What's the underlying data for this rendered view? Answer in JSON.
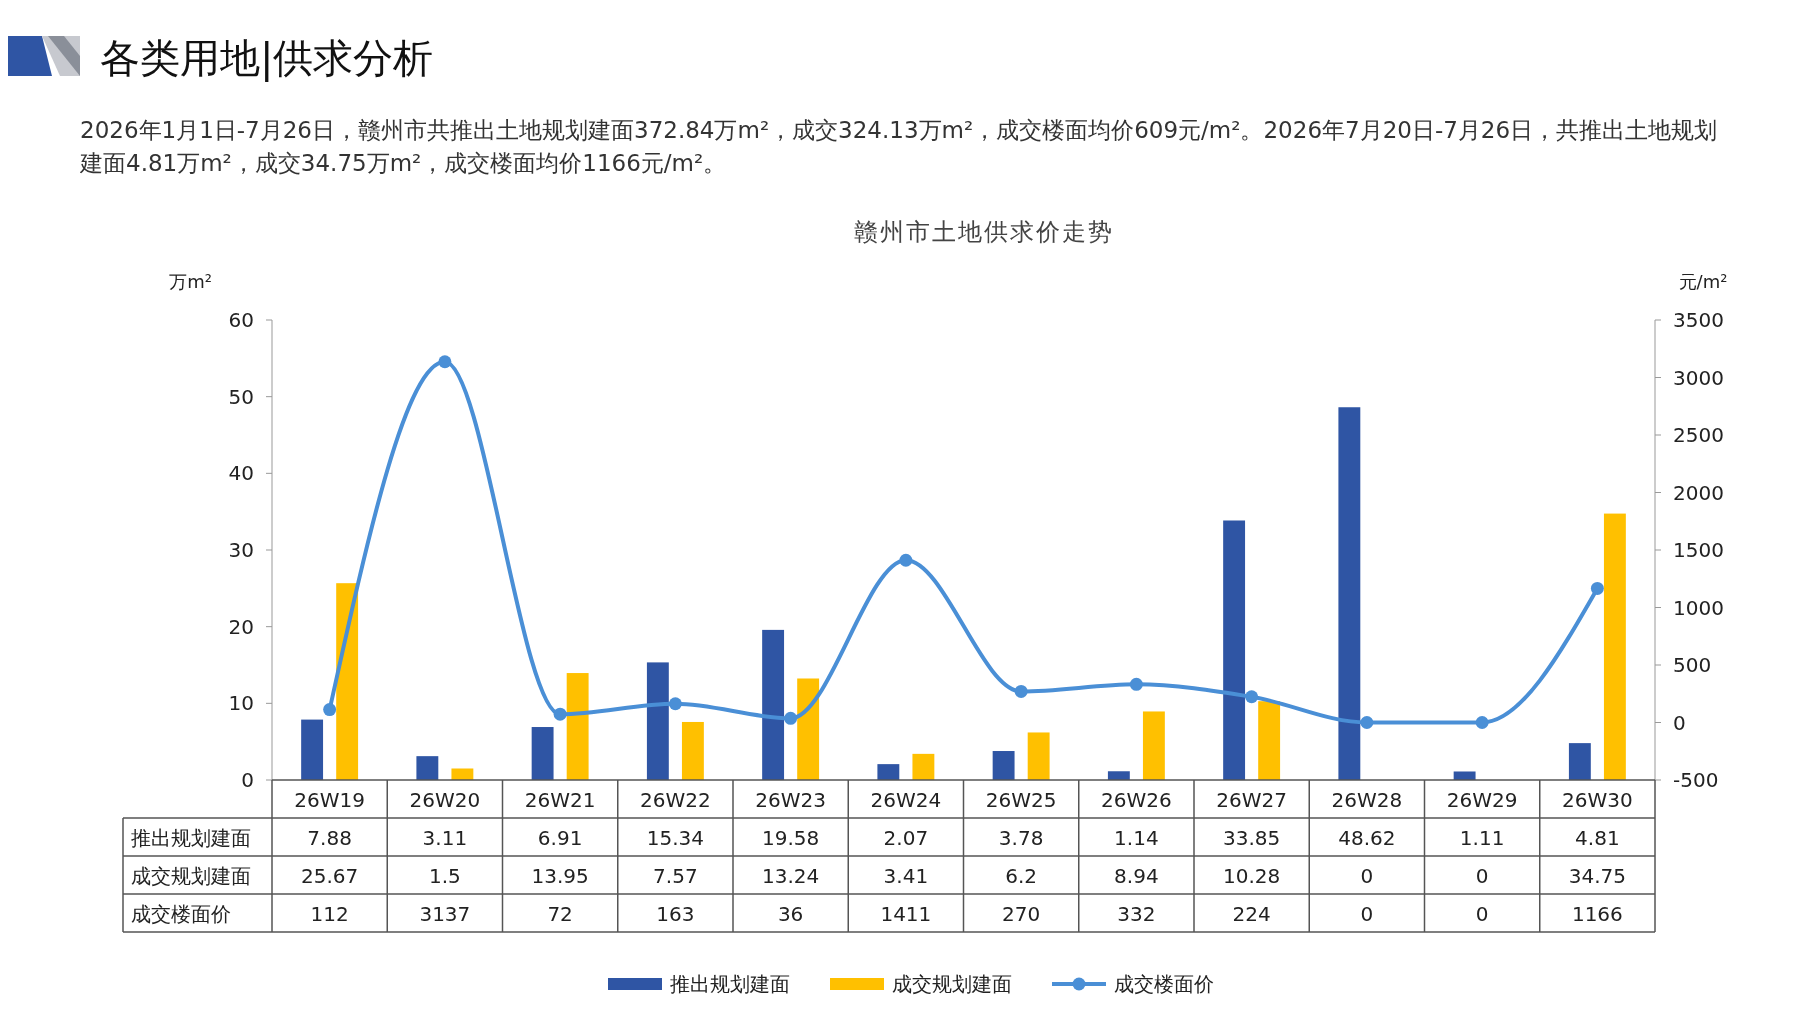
{
  "chart_data": {
    "type": "bar",
    "title": "赣州市土地供求价走势",
    "subtitle": "2026年1月1日-7月26日，赣州市共推出土地规划建面372.84万m²，成交324.13万m²，成交楼面均价609元/m²。2026年7月20日-7月26日，共推出土地规划建面4.81万m²，成交34.75万m²，成交楼面均价1166元/m²。",
    "annotations": [
      "各类用地|供求分析"
    ],
    "ylabel": "万m²",
    "y2label": "元/m²",
    "categories": [
      "26W19",
      "26W20",
      "26W21",
      "26W22",
      "26W23",
      "26W24",
      "26W25",
      "26W26",
      "26W27",
      "26W28",
      "26W29",
      "26W30"
    ],
    "series": [
      {
        "name": "推出规划建面",
        "color": "#2f55a4",
        "values": [
          7.88,
          3.11,
          6.91,
          15.34,
          19.58,
          2.07,
          3.78,
          1.14,
          33.85,
          48.62,
          1.11,
          4.81
        ]
      },
      {
        "name": "成交规划建面",
        "color": "#ffc000",
        "values": [
          25.67,
          1.5,
          13.95,
          7.57,
          13.24,
          3.41,
          6.2,
          8.94,
          10.28,
          0,
          0,
          34.75
        ]
      },
      {
        "name": "成交楼面价",
        "type": "line",
        "axis": "y2",
        "color": "#4a8fd6",
        "values": [
          112,
          3137,
          72,
          163,
          36,
          1411,
          270,
          332,
          224,
          0,
          0,
          1166
        ]
      }
    ],
    "ylim": [
      0,
      60
    ],
    "yticks": [
      0,
      10,
      20,
      30,
      40,
      50,
      60
    ],
    "y2lim": [
      -500,
      3500
    ],
    "y2ticks": [
      -500,
      0,
      500,
      1000,
      1500,
      2000,
      2500,
      3000,
      3500
    ],
    "grid": false,
    "legend": "bottom",
    "marker": "circle",
    "line_style": "solid",
    "data_labels": true
  }
}
